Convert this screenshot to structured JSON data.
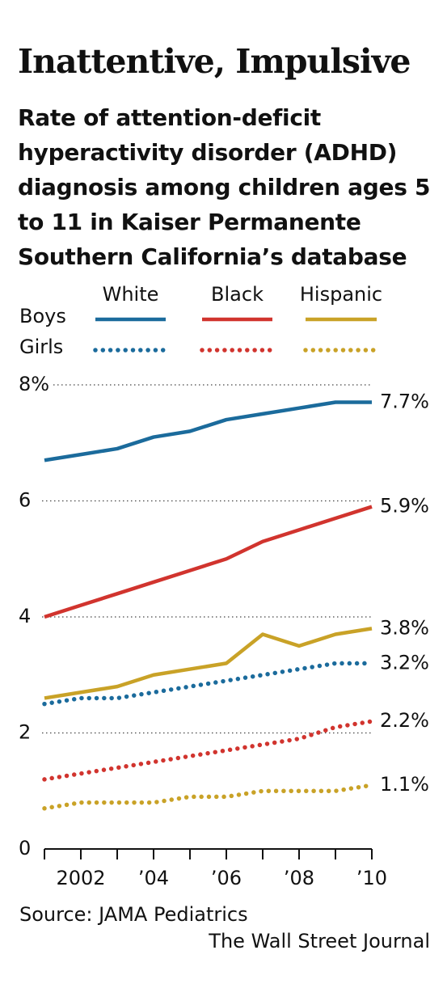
{
  "chart_data": {
    "type": "line",
    "title": "Inattentive, Impulsive",
    "subtitle": "Rate of attention-deficit hyperactivity disorder (ADHD) diagnosis among children ages 5 to 11 in Kaiser Permanente Southern California’s database",
    "legend": {
      "columns": [
        "White",
        "Black",
        "Hispanic"
      ],
      "rows": [
        "Boys",
        "Girls"
      ]
    },
    "x": [
      2001,
      2002,
      2003,
      2004,
      2005,
      2006,
      2007,
      2008,
      2009,
      2010
    ],
    "xlim": [
      2001,
      2010
    ],
    "xticks": [
      {
        "value": 2002,
        "label": "2002"
      },
      {
        "value": 2004,
        "label": "’04"
      },
      {
        "value": 2006,
        "label": "’06"
      },
      {
        "value": 2008,
        "label": "’08"
      },
      {
        "value": 2010,
        "label": "’10"
      }
    ],
    "ylim": [
      0,
      8
    ],
    "yticks": [
      0,
      2,
      4,
      6,
      {
        "value": 8,
        "label": "8%"
      }
    ],
    "grid": true,
    "series": [
      {
        "color": "#1b6b9c",
        "dash": "solid",
        "values": [
          6.7,
          6.8,
          6.9,
          7.1,
          7.2,
          7.4,
          7.5,
          7.6,
          7.7,
          7.7
        ],
        "value_labels": [
          null,
          null,
          null,
          null,
          null,
          null,
          null,
          null,
          null,
          "7.7%"
        ]
      },
      {
        "color": "#d1342e",
        "dash": "solid",
        "values": [
          4.0,
          4.2,
          4.4,
          4.6,
          4.8,
          5.0,
          5.3,
          5.5,
          5.7,
          5.9
        ],
        "value_labels": [
          null,
          null,
          null,
          null,
          null,
          null,
          null,
          null,
          null,
          "5.9%"
        ]
      },
      {
        "color": "#c9a227",
        "dash": "solid",
        "values": [
          2.6,
          2.7,
          2.8,
          3.0,
          3.1,
          3.2,
          3.7,
          3.5,
          3.7,
          3.8
        ],
        "value_labels": [
          null,
          null,
          null,
          null,
          null,
          null,
          null,
          null,
          null,
          "3.8%"
        ]
      },
      {
        "color": "#1b6b9c",
        "dash": "dotted",
        "values": [
          2.5,
          2.6,
          2.6,
          2.7,
          2.8,
          2.9,
          3.0,
          3.1,
          3.2,
          3.2
        ],
        "value_labels": [
          null,
          null,
          null,
          null,
          null,
          null,
          null,
          null,
          null,
          "3.2%"
        ]
      },
      {
        "color": "#d1342e",
        "dash": "dotted",
        "values": [
          1.2,
          1.3,
          1.4,
          1.5,
          1.6,
          1.7,
          1.8,
          1.9,
          2.1,
          2.2
        ],
        "value_labels": [
          null,
          null,
          null,
          null,
          null,
          null,
          null,
          null,
          null,
          "2.2%"
        ]
      },
      {
        "color": "#c9a227",
        "dash": "dotted",
        "values": [
          0.7,
          0.8,
          0.8,
          0.8,
          0.9,
          0.9,
          1.0,
          1.0,
          1.0,
          1.1
        ],
        "value_labels": [
          null,
          null,
          null,
          null,
          null,
          null,
          null,
          null,
          null,
          "1.1%"
        ]
      }
    ],
    "source": "Source: JAMA Pediatrics",
    "credit": "The Wall Street Journal"
  }
}
